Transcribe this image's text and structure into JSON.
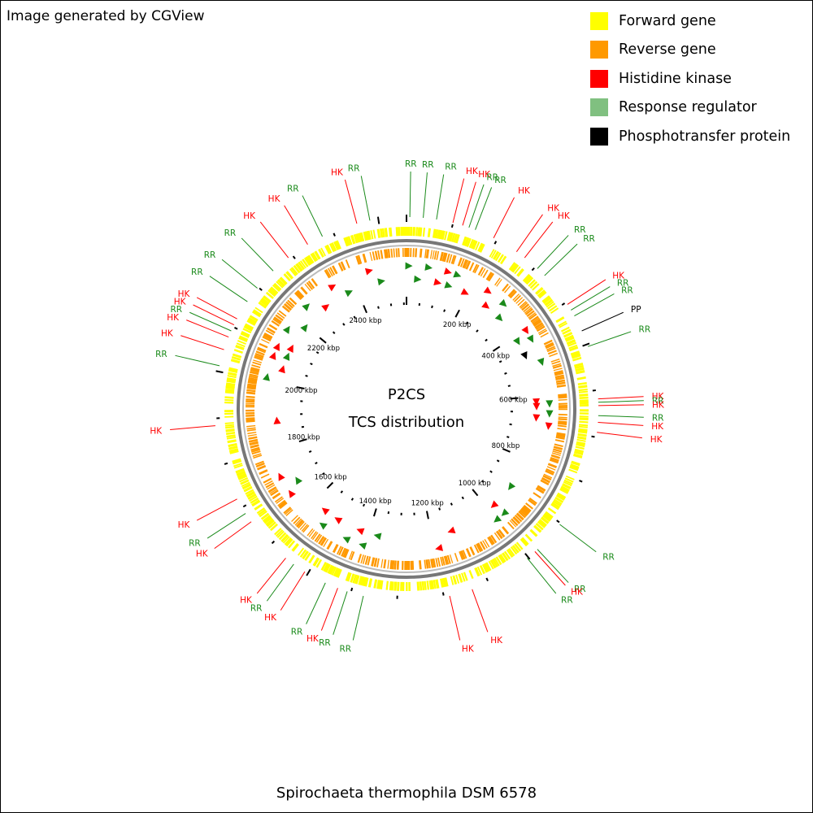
{
  "credit": "Image generated by CGView",
  "organism": "Spirochaeta thermophila DSM 6578",
  "center_title": "P2CS",
  "center_subtitle": "TCS distribution",
  "legend": [
    {
      "label": "Forward gene",
      "color": "#ffff00"
    },
    {
      "label": "Reverse gene",
      "color": "#ff9900"
    },
    {
      "label": "Histidine kinase",
      "color": "#ff0000"
    },
    {
      "label": "Response regulator",
      "color": "#80c080"
    },
    {
      "label": "Phosphotransfer protein",
      "color": "#000000"
    }
  ],
  "colors": {
    "forward": "#ffff00",
    "reverse": "#ff9900",
    "HK": "#ff0000",
    "RR": "#1a8a1a",
    "PP": "#000000",
    "backbone": "#777777"
  },
  "genome": {
    "length_kbp": 2560,
    "tick_labels": [
      "200 kbp",
      "400 kbp",
      "600 kbp",
      "800 kbp",
      "1000 kbp",
      "1200 kbp",
      "1400 kbp",
      "1600 kbp",
      "1800 kbp",
      "2000 kbp",
      "2200 kbp",
      "2400 kbp"
    ]
  },
  "features": [
    {
      "type": "RR",
      "label": "RR",
      "deg": 1
    },
    {
      "type": "RR",
      "label": "RR",
      "deg": 5
    },
    {
      "type": "RR",
      "label": "RR",
      "deg": 9
    },
    {
      "type": "HK",
      "label": "HK",
      "deg": 14
    },
    {
      "type": "HK",
      "label": "HK",
      "deg": 17
    },
    {
      "type": "RR",
      "label": "RR",
      "deg": 19
    },
    {
      "type": "RR",
      "label": "RR",
      "deg": 21
    },
    {
      "type": "HK",
      "label": "HK",
      "deg": 27
    },
    {
      "type": "HK",
      "label": "HK",
      "deg": 35
    },
    {
      "type": "HK",
      "label": "HK",
      "deg": 38
    },
    {
      "type": "RR",
      "label": "RR",
      "deg": 43
    },
    {
      "type": "RR",
      "label": "RR",
      "deg": 46
    },
    {
      "type": "HK",
      "label": "HK",
      "deg": 57
    },
    {
      "type": "RR",
      "label": "RR",
      "deg": 59
    },
    {
      "type": "RR",
      "label": "RR",
      "deg": 61
    },
    {
      "type": "PP",
      "label": "PP",
      "deg": 66
    },
    {
      "type": "RR",
      "label": "RR",
      "deg": 71
    },
    {
      "type": "HK",
      "label": "HK",
      "deg": 87
    },
    {
      "type": "RR",
      "label": "RR",
      "deg": 88
    },
    {
      "type": "HK",
      "label": "HK",
      "deg": 89
    },
    {
      "type": "RR",
      "label": "RR",
      "deg": 92
    },
    {
      "type": "HK",
      "label": "HK",
      "deg": 94
    },
    {
      "type": "HK",
      "label": "HK",
      "deg": 97
    },
    {
      "type": "RR",
      "label": "RR",
      "deg": 127
    },
    {
      "type": "RR",
      "label": "RR",
      "deg": 137
    },
    {
      "type": "HK",
      "label": "HK",
      "deg": 138
    },
    {
      "type": "RR",
      "label": "RR",
      "deg": 141
    },
    {
      "type": "HK",
      "label": "HK",
      "deg": 160
    },
    {
      "type": "HK",
      "label": "HK",
      "deg": 167
    },
    {
      "type": "RR",
      "label": "RR",
      "deg": 193
    },
    {
      "type": "RR",
      "label": "RR",
      "deg": 198
    },
    {
      "type": "HK",
      "label": "HK",
      "deg": 201
    },
    {
      "type": "RR",
      "label": "RR",
      "deg": 205
    },
    {
      "type": "HK",
      "label": "HK",
      "deg": 212
    },
    {
      "type": "RR",
      "label": "RR",
      "deg": 216
    },
    {
      "type": "HK",
      "label": "HK",
      "deg": 219
    },
    {
      "type": "HK",
      "label": "HK",
      "deg": 234
    },
    {
      "type": "RR",
      "label": "RR",
      "deg": 237
    },
    {
      "type": "HK",
      "label": "HK",
      "deg": 242
    },
    {
      "type": "HK",
      "label": "HK",
      "deg": 265
    },
    {
      "type": "RR",
      "label": "RR",
      "deg": 283
    },
    {
      "type": "HK",
      "label": "HK",
      "deg": 288
    },
    {
      "type": "HK",
      "label": "HK",
      "deg": 292
    },
    {
      "type": "RR",
      "label": "RR",
      "deg": 294
    },
    {
      "type": "HK",
      "label": "HK",
      "deg": 296
    },
    {
      "type": "HK",
      "label": "HK",
      "deg": 298
    },
    {
      "type": "RR",
      "label": "RR",
      "deg": 304
    },
    {
      "type": "RR",
      "label": "RR",
      "deg": 309
    },
    {
      "type": "RR",
      "label": "RR",
      "deg": 316
    },
    {
      "type": "HK",
      "label": "HK",
      "deg": 322
    },
    {
      "type": "HK",
      "label": "HK",
      "deg": 329
    },
    {
      "type": "RR",
      "label": "RR",
      "deg": 334
    },
    {
      "type": "HK",
      "label": "HK",
      "deg": 345
    },
    {
      "type": "RR",
      "label": "RR",
      "deg": 349
    }
  ]
}
